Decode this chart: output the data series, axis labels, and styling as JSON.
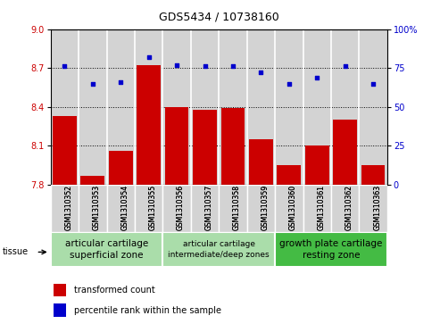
{
  "title": "GDS5434 / 10738160",
  "samples": [
    "GSM1310352",
    "GSM1310353",
    "GSM1310354",
    "GSM1310355",
    "GSM1310356",
    "GSM1310357",
    "GSM1310358",
    "GSM1310359",
    "GSM1310360",
    "GSM1310361",
    "GSM1310362",
    "GSM1310363"
  ],
  "bar_values": [
    8.33,
    7.87,
    8.06,
    8.72,
    8.4,
    8.38,
    8.39,
    8.15,
    7.95,
    8.1,
    8.3,
    7.95
  ],
  "dot_values": [
    76,
    65,
    66,
    82,
    77,
    76,
    76,
    72,
    65,
    69,
    76,
    65
  ],
  "bar_color": "#cc0000",
  "dot_color": "#0000cc",
  "ylim_left": [
    7.8,
    9.0
  ],
  "ylim_right": [
    0,
    100
  ],
  "yticks_left": [
    7.8,
    8.1,
    8.4,
    8.7,
    9.0
  ],
  "yticks_right": [
    0,
    25,
    50,
    75,
    100
  ],
  "ytick_right_labels": [
    "0",
    "25",
    "50",
    "75",
    "100%"
  ],
  "hlines": [
    8.1,
    8.4,
    8.7
  ],
  "groups": [
    {
      "label": "articular cartilage\nsuperficial zone",
      "start": 0,
      "end": 3,
      "color": "#aaddaa",
      "fontsize": 7.5
    },
    {
      "label": "articular cartilage\nintermediate/deep zones",
      "start": 4,
      "end": 7,
      "color": "#aaddaa",
      "fontsize": 6.5
    },
    {
      "label": "growth plate cartilage\nresting zone",
      "start": 8,
      "end": 11,
      "color": "#44bb44",
      "fontsize": 7.5
    }
  ],
  "tissue_label": "tissue",
  "legend_bar_label": "transformed count",
  "legend_dot_label": "percentile rank within the sample",
  "background_color": "#ffffff",
  "bar_bg_color": "#d3d3d3",
  "title_fontsize": 9,
  "axis_fontsize": 7,
  "tick_fontsize": 7,
  "sample_fontsize": 5.5
}
